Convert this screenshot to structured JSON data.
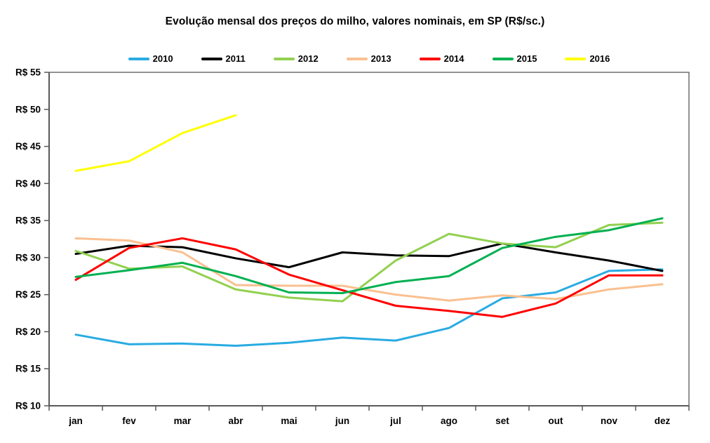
{
  "title": "Evolução mensal dos preços do milho, valores nominais, em SP (R$/sc.)",
  "chart_data": {
    "type": "line",
    "title": "Evolução mensal dos preços do milho, valores nominais, em SP (R$/sc.)",
    "categories": [
      "jan",
      "fev",
      "mar",
      "abr",
      "mai",
      "jun",
      "jul",
      "ago",
      "set",
      "out",
      "nov",
      "dez"
    ],
    "xlabel": "",
    "ylabel": "",
    "y_axis": {
      "min": 10,
      "max": 55,
      "step": 5,
      "tick_labels": [
        "R$ 10",
        "R$ 15",
        "R$ 20",
        "R$ 25",
        "R$ 30",
        "R$ 35",
        "R$ 40",
        "R$ 45",
        "R$ 50",
        "R$ 55"
      ]
    },
    "grid": false,
    "legend_position": "top",
    "series": [
      {
        "name": "2010",
        "color": "#29ABE2",
        "values": [
          19.6,
          18.3,
          18.4,
          18.1,
          18.5,
          19.2,
          18.8,
          20.5,
          24.5,
          25.3,
          28.2,
          28.4
        ]
      },
      {
        "name": "2011",
        "color": "#000000",
        "values": [
          30.5,
          31.6,
          31.4,
          29.9,
          28.7,
          30.7,
          30.3,
          30.2,
          31.9,
          30.7,
          29.6,
          28.2
        ]
      },
      {
        "name": "2012",
        "color": "#92D050",
        "values": [
          30.9,
          28.5,
          28.8,
          25.7,
          24.6,
          24.1,
          29.6,
          33.2,
          31.9,
          31.4,
          34.4,
          34.7
        ]
      },
      {
        "name": "2013",
        "color": "#FAC090",
        "values": [
          32.6,
          32.3,
          30.7,
          26.3,
          26.2,
          26.2,
          25.0,
          24.2,
          24.9,
          24.4,
          25.7,
          26.4
        ]
      },
      {
        "name": "2014",
        "color": "#FF0000",
        "values": [
          27.0,
          31.3,
          32.6,
          31.1,
          27.7,
          25.6,
          23.5,
          22.8,
          22.0,
          23.8,
          27.6,
          27.6
        ]
      },
      {
        "name": "2015",
        "color": "#00B050",
        "values": [
          27.4,
          28.3,
          29.3,
          27.5,
          25.3,
          25.2,
          26.7,
          27.5,
          31.3,
          32.8,
          33.7,
          35.3
        ]
      },
      {
        "name": "2016",
        "color": "#FFFF00",
        "values": [
          41.7,
          43.0,
          46.8,
          49.2,
          null,
          null,
          null,
          null,
          null,
          null,
          null,
          null
        ]
      }
    ],
    "axis_color": "#595959"
  }
}
